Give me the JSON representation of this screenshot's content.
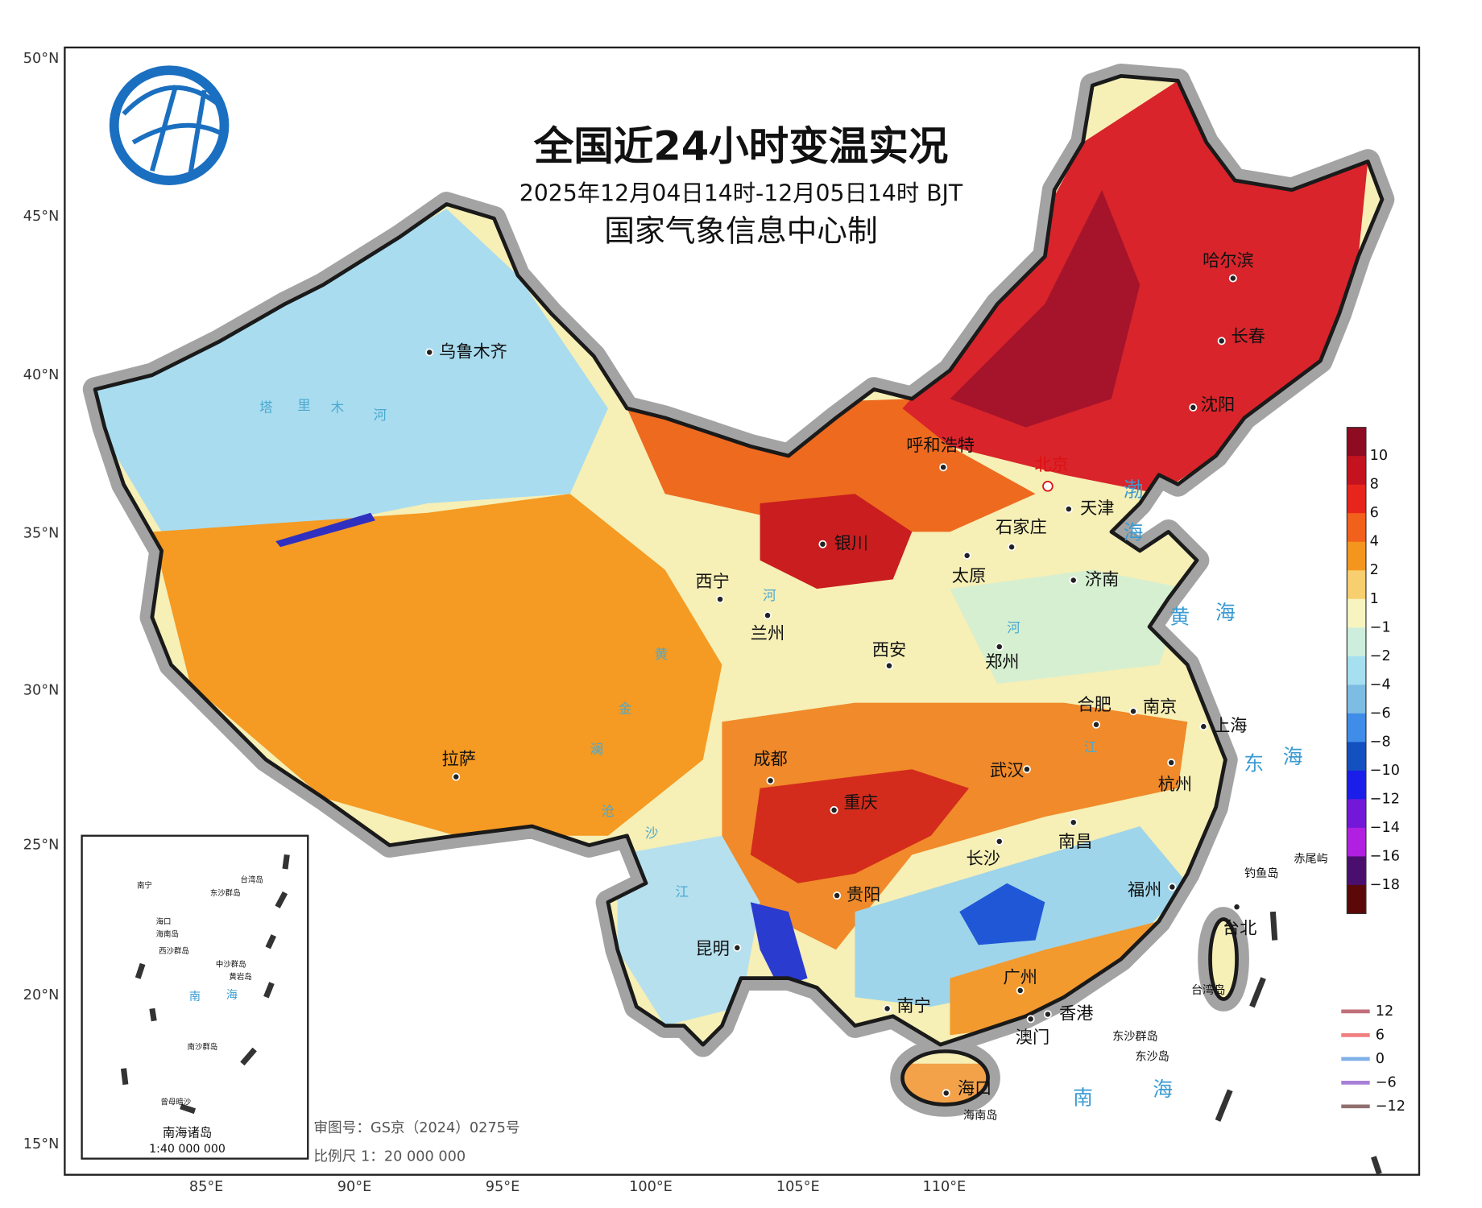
{
  "header": {
    "title": "全国近24小时变温实况",
    "subtitle": "2025年12月04日14时-12月05日14时 BJT",
    "producer": "国家气象信息中心制"
  },
  "axes": {
    "lat_labels": [
      "50°N",
      "45°N",
      "40°N",
      "35°N",
      "30°N",
      "25°N",
      "20°N",
      "15°N"
    ],
    "lon_labels": [
      "85°E",
      "90°E",
      "95°E",
      "100°E",
      "105°E",
      "110°E"
    ]
  },
  "legend": {
    "labels": [
      "10",
      "8",
      "6",
      "4",
      "2",
      "1",
      "−1",
      "−2",
      "−4",
      "−6",
      "−8",
      "−10",
      "−12",
      "−14",
      "−16",
      "−18"
    ],
    "colors": [
      "#8e0b22",
      "#c4121f",
      "#e8251c",
      "#f2611c",
      "#f4951e",
      "#f7cf6e",
      "#f8f4c0",
      "#cdeedc",
      "#a6dff0",
      "#7dbde3",
      "#3f8de8",
      "#1350c0",
      "#1a1ee8",
      "#7318d8",
      "#b120e0",
      "#4a0f6e",
      "#5a0808"
    ]
  },
  "contour_legend": {
    "labels": [
      "12",
      "6",
      "0",
      "−6",
      "−12"
    ],
    "colors": [
      "#c0707a",
      "#f07f7f",
      "#7fb0e8",
      "#a77fd8",
      "#907070"
    ]
  },
  "cities": [
    "乌鲁木齐",
    "呼和浩特",
    "北京",
    "天津",
    "石家庄",
    "银川",
    "太原",
    "济南",
    "西宁",
    "兰州",
    "西安",
    "郑州",
    "合肥",
    "南京",
    "上海",
    "拉萨",
    "成都",
    "重庆",
    "武汉",
    "杭州",
    "长沙",
    "南昌",
    "贵阳",
    "福州",
    "昆明",
    "南宁",
    "广州",
    "香港",
    "澳门",
    "海口",
    "台北",
    "哈尔滨",
    "长春",
    "沈阳"
  ],
  "places": [
    "钓鱼岛",
    "赤尾屿",
    "台湾岛",
    "东沙群岛",
    "东沙岛",
    "海南岛"
  ],
  "seas": [
    "渤",
    "海",
    "黄",
    "海",
    "东",
    "海",
    "南",
    "海"
  ],
  "rivers": [
    "塔",
    "里",
    "木",
    "河",
    "黄",
    "河",
    "河",
    "江",
    "金",
    "沙",
    "江",
    "澜",
    "沧"
  ],
  "inset": {
    "title": "南海诸岛",
    "scale": "1:40 000 000",
    "labels": [
      "南宁",
      "海口",
      "海南岛",
      "台湾岛",
      "东沙群岛",
      "西沙群岛",
      "中沙群岛",
      "黄岩岛",
      "南",
      "海",
      "南沙群岛",
      "曾母暗沙"
    ]
  },
  "footer": {
    "approval": "审图号：GS京（2024）0275号",
    "scale": "比例尺 1：20 000 000"
  }
}
